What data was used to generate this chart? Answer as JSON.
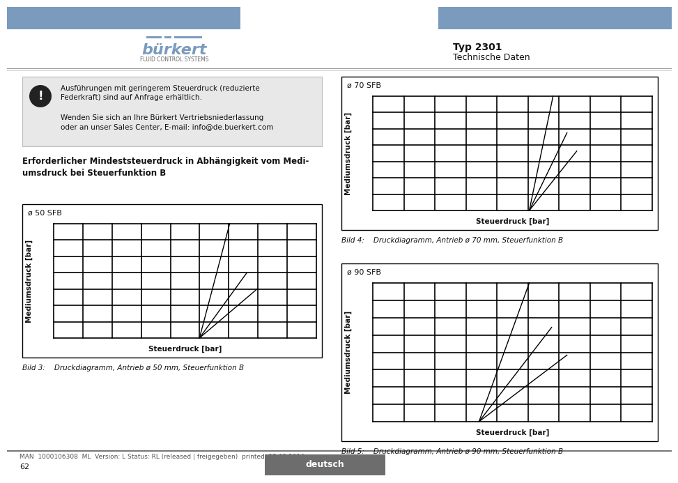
{
  "page_bg": "#ffffff",
  "header_bar_color": "#7a9bbe",
  "burkert_text": "bürkert",
  "burkert_subtitle": "FLUID CONTROL SYSTEMS",
  "typ_text": "Typ 2301",
  "tech_text": "Technische Daten",
  "warning_box_text1": "Ausführungen mit geringerem Steuerdruck (reduzierte\nFederkraft) sind auf Anfrage erhältlich.",
  "warning_box_text2": "Wenden Sie sich an Ihre Bürkert Vertriebsniederlassung\noder an unser Sales Center, E-mail: info@de.buerkert.com",
  "section_title": "Erforderlicher Mindeststeuerdruck in Abhängigkeit vom Medi-\numsdruck bei Steuerfunktion B",
  "chart1_title": "ø 50 SFB",
  "chart1_xlabel": "Steuerdruck [bar]",
  "chart1_ylabel": "Mediumsdruck [bar]",
  "chart1_caption": "Bild 3:    Druckdiagramm, Antrieb ø 50 mm, Steuerfunktion B",
  "chart2_title": "ø 70 SFB",
  "chart2_xlabel": "Steuerdruck [bar]",
  "chart2_ylabel": "Mediumsdruck [bar]",
  "chart2_caption": "Bild 4:    Druckdiagramm, Antrieb ø 70 mm, Steuerfunktion B",
  "chart3_title": "ø 90 SFB",
  "chart3_xlabel": "Steuerdruck [bar]",
  "chart3_ylabel": "Mediumsdruck [bar]",
  "chart3_caption": "Bild 5:    Druckdiagramm, Antrieb ø 90 mm, Steuerfunktion B",
  "footer_text": "MAN  1000106308  ML  Version: L Status: RL (released | freigegeben)  printed: 12.02.2014",
  "footer_page": "62",
  "footer_deutsch": "deutsch",
  "footer_deutsch_bg": "#6d6d6d"
}
